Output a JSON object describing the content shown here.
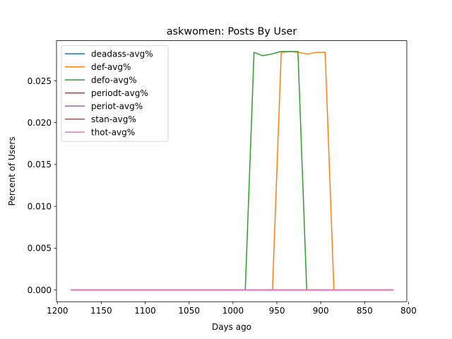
{
  "chart_data": {
    "type": "line",
    "title": "askwomen: Posts By User",
    "xlabel": "Days ago",
    "ylabel": "Percent of Users",
    "xlim": [
      1201,
      802
    ],
    "ylim": [
      -0.0014,
      0.0298
    ],
    "x_ticks": [
      1200,
      1150,
      1100,
      1050,
      1000,
      950,
      900,
      850,
      800
    ],
    "x_tick_labels": [
      "1200",
      "1150",
      "1100",
      "1050",
      "1000",
      "950",
      "900",
      "850",
      "800"
    ],
    "y_ticks": [
      0.0,
      0.005,
      0.01,
      0.015,
      0.02,
      0.025
    ],
    "y_tick_labels": [
      "0.000",
      "0.005",
      "0.010",
      "0.015",
      "0.020",
      "0.025"
    ],
    "grid": false,
    "legend_position": "upper-left",
    "series": [
      {
        "name": "deadass-avg%",
        "color": "#1f77b4",
        "x": [
          1184,
          818
        ],
        "y": [
          0.0,
          0.0
        ]
      },
      {
        "name": "def-avg%",
        "color": "#ff7f0e",
        "x": [
          1184,
          955,
          945,
          935,
          925,
          915,
          905,
          895,
          885,
          818
        ],
        "y": [
          0.0,
          0.0,
          0.0284,
          0.0285,
          0.0284,
          0.0282,
          0.0284,
          0.0284,
          0.0,
          0.0
        ]
      },
      {
        "name": "defo-avg%",
        "color": "#2ca02c",
        "x": [
          1184,
          986,
          976,
          966,
          956,
          946,
          936,
          926,
          916,
          818
        ],
        "y": [
          0.0,
          0.0,
          0.0284,
          0.028,
          0.0282,
          0.0285,
          0.0285,
          0.0285,
          0.0,
          0.0
        ]
      },
      {
        "name": "periodt-avg%",
        "color": "#d62728",
        "x": [
          1184,
          818
        ],
        "y": [
          0.0,
          0.0
        ]
      },
      {
        "name": "periot-avg%",
        "color": "#9467bd",
        "x": [
          1184,
          818
        ],
        "y": [
          0.0,
          0.0
        ]
      },
      {
        "name": "stan-avg%",
        "color": "#8c564b",
        "x": [
          1184,
          818
        ],
        "y": [
          0.0,
          0.0
        ]
      },
      {
        "name": "thot-avg%",
        "color": "#e377c2",
        "x": [
          1184,
          1000,
          950,
          900,
          850,
          818
        ],
        "y": [
          1e-05,
          1e-05,
          2e-05,
          2e-05,
          1e-05,
          1e-05
        ]
      }
    ]
  }
}
